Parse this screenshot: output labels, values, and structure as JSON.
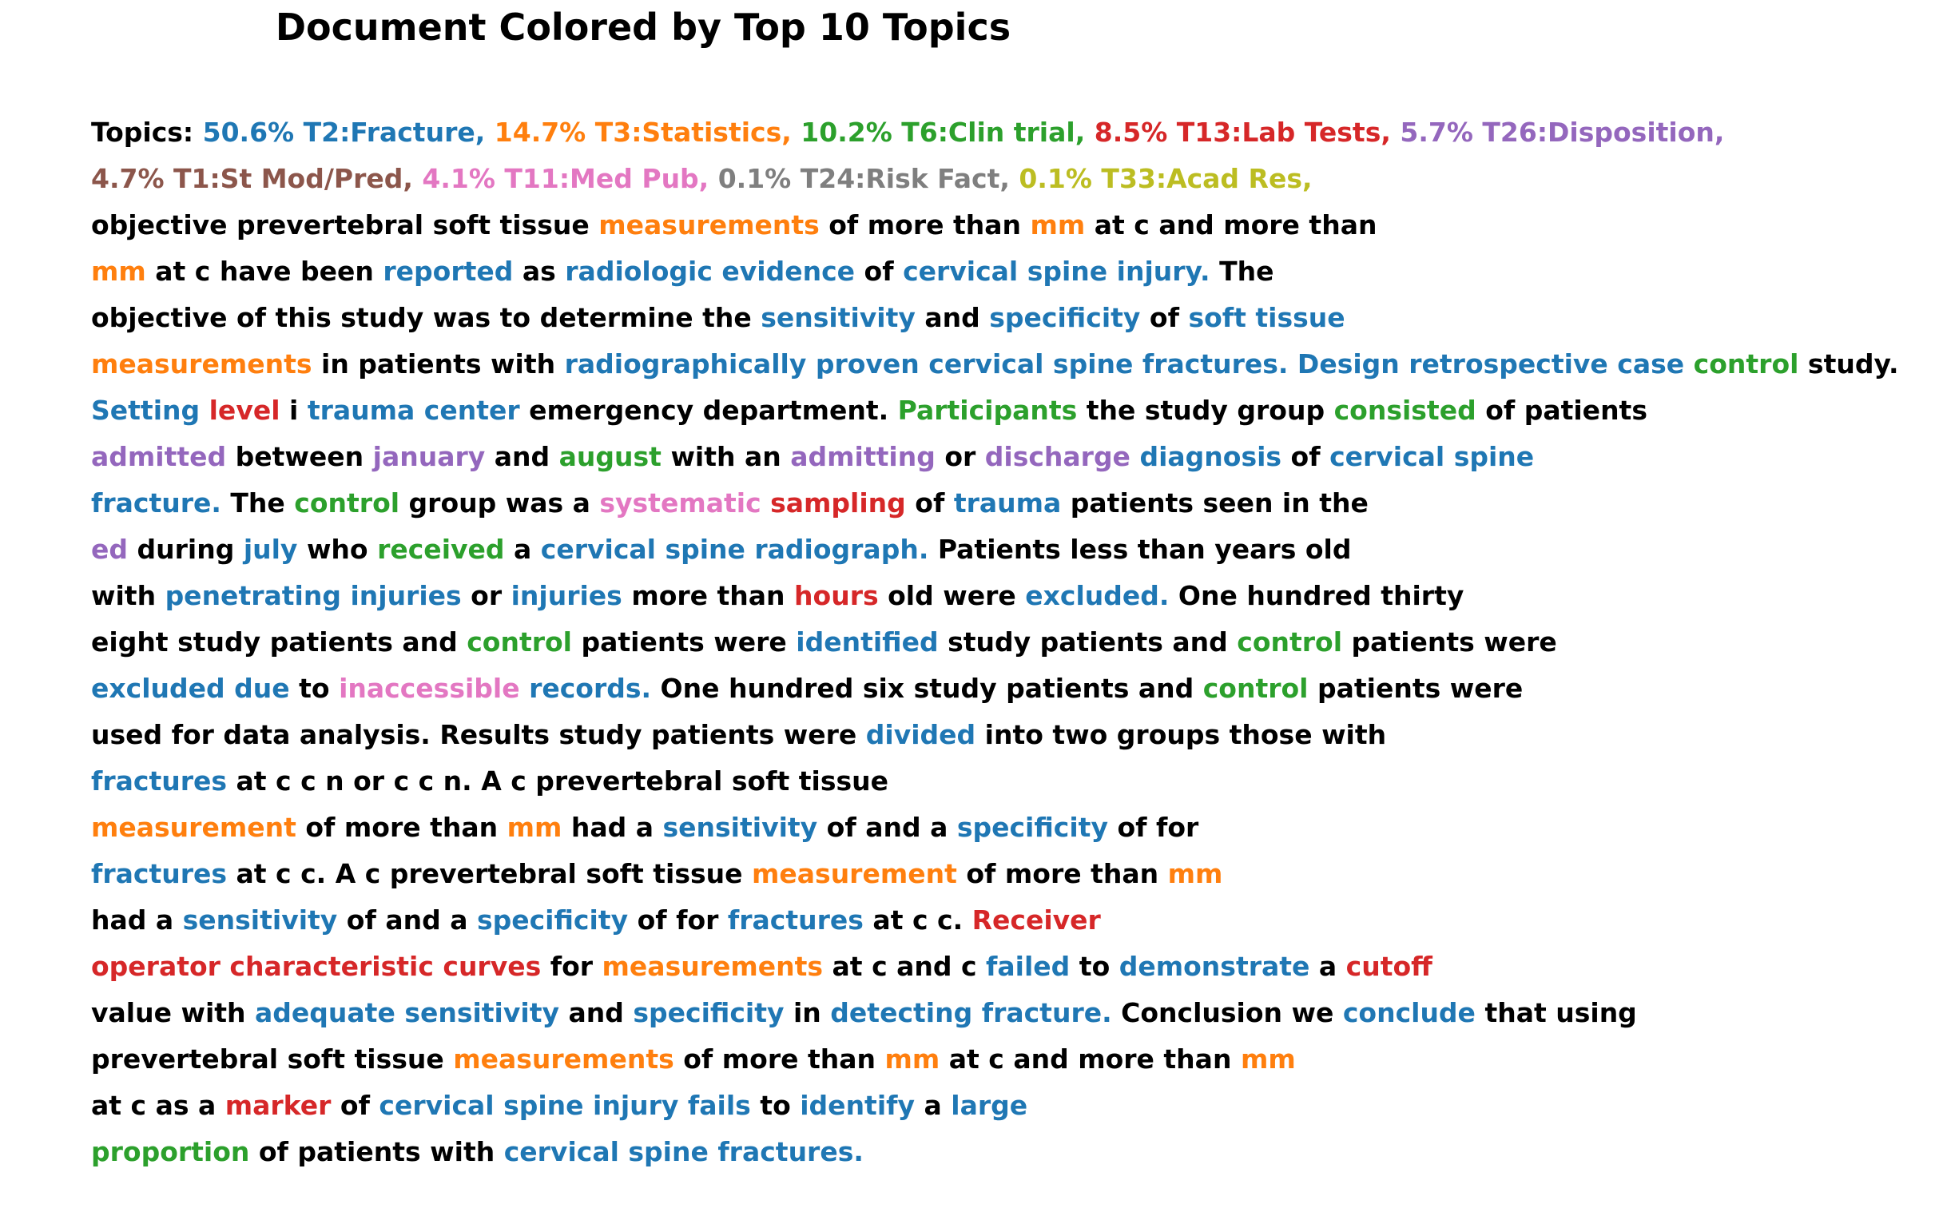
{
  "title": "Document Colored by Top 10 Topics",
  "colors": {
    "t2": "#1f77b4",
    "t3": "#ff7f0e",
    "t6": "#2ca02c",
    "t13": "#d62728",
    "t26": "#9467bd",
    "t1": "#8c564b",
    "t11": "#e377c2",
    "t24": "#7f7f7f",
    "t33": "#bcbd22",
    "plain": "#000000"
  },
  "lines": [
    [
      [
        "plain",
        "Topics: "
      ],
      [
        "t2",
        "50.6% T2:Fracture,"
      ],
      [
        "plain",
        " "
      ],
      [
        "t3",
        "14.7% T3:Statistics,"
      ],
      [
        "plain",
        " "
      ],
      [
        "t6",
        "10.2% T6:Clin trial,"
      ],
      [
        "plain",
        " "
      ],
      [
        "t13",
        "8.5% T13:Lab Tests,"
      ],
      [
        "plain",
        " "
      ],
      [
        "t26",
        "5.7% T26:Disposition,"
      ]
    ],
    [
      [
        "t1",
        "4.7% T1:St Mod/Pred,"
      ],
      [
        "plain",
        " "
      ],
      [
        "t11",
        "4.1% T11:Med Pub,"
      ],
      [
        "plain",
        " "
      ],
      [
        "t24",
        "0.1% T24:Risk Fact,"
      ],
      [
        "plain",
        " "
      ],
      [
        "t33",
        "0.1% T33:Acad Res,"
      ]
    ],
    [
      [
        "plain",
        "objective prevertebral soft tissue "
      ],
      [
        "t3",
        "measurements"
      ],
      [
        "plain",
        " of more than "
      ],
      [
        "t3",
        "mm"
      ],
      [
        "plain",
        " at c and more than"
      ]
    ],
    [
      [
        "t3",
        "mm"
      ],
      [
        "plain",
        " at c have been "
      ],
      [
        "t2",
        "reported"
      ],
      [
        "plain",
        " as "
      ],
      [
        "t2",
        "radiologic evidence"
      ],
      [
        "plain",
        " of "
      ],
      [
        "t2",
        "cervical spine injury."
      ],
      [
        "plain",
        " The"
      ]
    ],
    [
      [
        "plain",
        "objective of this study was to determine the "
      ],
      [
        "t2",
        "sensitivity"
      ],
      [
        "plain",
        " and "
      ],
      [
        "t2",
        "specificity"
      ],
      [
        "plain",
        " of "
      ],
      [
        "t2",
        "soft tissue"
      ]
    ],
    [
      [
        "t3",
        "measurements"
      ],
      [
        "plain",
        " in patients with "
      ],
      [
        "t2",
        "radiographically proven cervical spine fractures. Design retrospective case"
      ],
      [
        "plain",
        " "
      ],
      [
        "t6",
        "control"
      ],
      [
        "plain",
        " study."
      ]
    ],
    [
      [
        "t2",
        "Setting"
      ],
      [
        "plain",
        " "
      ],
      [
        "t13",
        "level"
      ],
      [
        "plain",
        " i "
      ],
      [
        "t2",
        "trauma center"
      ],
      [
        "plain",
        " emergency department. "
      ],
      [
        "t6",
        "Participants"
      ],
      [
        "plain",
        " the study group "
      ],
      [
        "t6",
        "consisted"
      ],
      [
        "plain",
        " of patients"
      ]
    ],
    [
      [
        "t26",
        "admitted"
      ],
      [
        "plain",
        " between "
      ],
      [
        "t26",
        "january"
      ],
      [
        "plain",
        " and "
      ],
      [
        "t6",
        "august"
      ],
      [
        "plain",
        " with an "
      ],
      [
        "t26",
        "admitting"
      ],
      [
        "plain",
        " or "
      ],
      [
        "t26",
        "discharge"
      ],
      [
        "plain",
        " "
      ],
      [
        "t2",
        "diagnosis"
      ],
      [
        "plain",
        " of "
      ],
      [
        "t2",
        "cervical spine"
      ]
    ],
    [
      [
        "t2",
        "fracture."
      ],
      [
        "plain",
        " The "
      ],
      [
        "t6",
        "control"
      ],
      [
        "plain",
        " group was a "
      ],
      [
        "t11",
        "systematic"
      ],
      [
        "plain",
        " "
      ],
      [
        "t13",
        "sampling"
      ],
      [
        "plain",
        " of "
      ],
      [
        "t2",
        "trauma"
      ],
      [
        "plain",
        " patients seen in the"
      ]
    ],
    [
      [
        "t26",
        "ed"
      ],
      [
        "plain",
        " during "
      ],
      [
        "t2",
        "july"
      ],
      [
        "plain",
        " who "
      ],
      [
        "t6",
        "received"
      ],
      [
        "plain",
        " a "
      ],
      [
        "t2",
        "cervical spine radiograph."
      ],
      [
        "plain",
        " Patients less than years old"
      ]
    ],
    [
      [
        "plain",
        "with "
      ],
      [
        "t2",
        "penetrating injuries"
      ],
      [
        "plain",
        " or "
      ],
      [
        "t2",
        "injuries"
      ],
      [
        "plain",
        " more than "
      ],
      [
        "t13",
        "hours"
      ],
      [
        "plain",
        " old were "
      ],
      [
        "t2",
        "excluded."
      ],
      [
        "plain",
        " One hundred thirty"
      ]
    ],
    [
      [
        "plain",
        "eight study patients and "
      ],
      [
        "t6",
        "control"
      ],
      [
        "plain",
        " patients were "
      ],
      [
        "t2",
        "identified"
      ],
      [
        "plain",
        " study patients and "
      ],
      [
        "t6",
        "control"
      ],
      [
        "plain",
        " patients were"
      ]
    ],
    [
      [
        "t2",
        "excluded due"
      ],
      [
        "plain",
        " to "
      ],
      [
        "t11",
        "inaccessible"
      ],
      [
        "plain",
        " "
      ],
      [
        "t2",
        "records."
      ],
      [
        "plain",
        " One hundred six study patients and "
      ],
      [
        "t6",
        "control"
      ],
      [
        "plain",
        " patients were"
      ]
    ],
    [
      [
        "plain",
        "used for data analysis. Results study patients were "
      ],
      [
        "t2",
        "divided"
      ],
      [
        "plain",
        " into two groups those with"
      ]
    ],
    [
      [
        "t2",
        "fractures"
      ],
      [
        "plain",
        " at c c n or c c n. A c prevertebral soft tissue"
      ]
    ],
    [
      [
        "t3",
        "measurement"
      ],
      [
        "plain",
        " of more than "
      ],
      [
        "t3",
        "mm"
      ],
      [
        "plain",
        " had a "
      ],
      [
        "t2",
        "sensitivity"
      ],
      [
        "plain",
        " of and a "
      ],
      [
        "t2",
        "specificity"
      ],
      [
        "plain",
        " of for"
      ]
    ],
    [
      [
        "t2",
        "fractures"
      ],
      [
        "plain",
        " at c c. A c prevertebral soft tissue "
      ],
      [
        "t3",
        "measurement"
      ],
      [
        "plain",
        " of more than "
      ],
      [
        "t3",
        "mm"
      ]
    ],
    [
      [
        "plain",
        "had a "
      ],
      [
        "t2",
        "sensitivity"
      ],
      [
        "plain",
        " of and a "
      ],
      [
        "t2",
        "specificity"
      ],
      [
        "plain",
        " of for "
      ],
      [
        "t2",
        "fractures"
      ],
      [
        "plain",
        " at c c. "
      ],
      [
        "t13",
        "Receiver"
      ]
    ],
    [
      [
        "t13",
        "operator characteristic curves"
      ],
      [
        "plain",
        " for "
      ],
      [
        "t3",
        "measurements"
      ],
      [
        "plain",
        " at c and c "
      ],
      [
        "t2",
        "failed"
      ],
      [
        "plain",
        " to "
      ],
      [
        "t2",
        "demonstrate"
      ],
      [
        "plain",
        " a "
      ],
      [
        "t13",
        "cutoff"
      ]
    ],
    [
      [
        "plain",
        "value with "
      ],
      [
        "t2",
        "adequate sensitivity"
      ],
      [
        "plain",
        " and "
      ],
      [
        "t2",
        "specificity"
      ],
      [
        "plain",
        " in "
      ],
      [
        "t2",
        "detecting fracture."
      ],
      [
        "plain",
        " Conclusion we "
      ],
      [
        "t2",
        "conclude"
      ],
      [
        "plain",
        " that using"
      ]
    ],
    [
      [
        "plain",
        "prevertebral soft tissue "
      ],
      [
        "t3",
        "measurements"
      ],
      [
        "plain",
        " of more than "
      ],
      [
        "t3",
        "mm"
      ],
      [
        "plain",
        " at c and more than "
      ],
      [
        "t3",
        "mm"
      ]
    ],
    [
      [
        "plain",
        "at c as a "
      ],
      [
        "t13",
        "marker"
      ],
      [
        "plain",
        " of "
      ],
      [
        "t2",
        "cervical spine injury fails"
      ],
      [
        "plain",
        " to "
      ],
      [
        "t2",
        "identify"
      ],
      [
        "plain",
        " a "
      ],
      [
        "t2",
        "large"
      ]
    ],
    [
      [
        "t6",
        "proportion"
      ],
      [
        "plain",
        " of patients with "
      ],
      [
        "t2",
        "cervical spine fractures."
      ]
    ]
  ]
}
